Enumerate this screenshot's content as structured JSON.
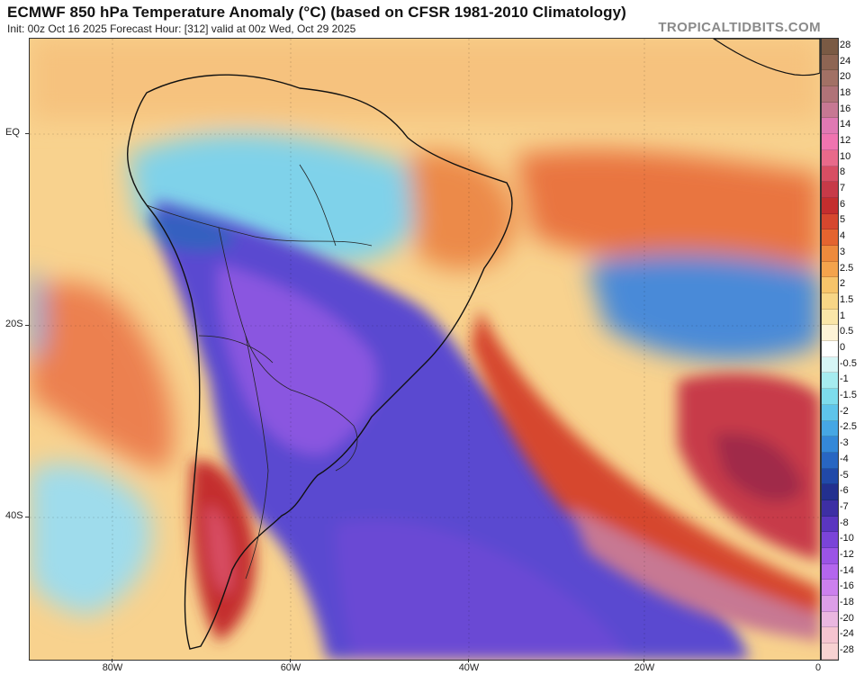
{
  "header": {
    "title": "ECMWF 850 hPa Temperature Anomaly (°C) (based on CFSR 1981-2010 Climatology)",
    "subtitle": "Init: 00z Oct 16 2025   Forecast Hour: [312]   valid at 00z Wed, Oct 29 2025",
    "watermark": "TROPICALTIDBITS.COM"
  },
  "axes": {
    "lat_labels": [
      "EQ",
      "20S",
      "40S"
    ],
    "lon_labels": [
      "80W",
      "60W",
      "40W",
      "20W",
      "0"
    ]
  },
  "colorbar": {
    "labels": [
      "28",
      "24",
      "20",
      "18",
      "16",
      "14",
      "12",
      "10",
      "8",
      "7",
      "6",
      "5",
      "4",
      "3",
      "2.5",
      "2",
      "1.5",
      "1",
      "0.5",
      "0",
      "-0.5",
      "-1",
      "-1.5",
      "-2",
      "-2.5",
      "-3",
      "-4",
      "-5",
      "-6",
      "-7",
      "-8",
      "-10",
      "-12",
      "-14",
      "-16",
      "-18",
      "-20",
      "-24",
      "-28"
    ],
    "colors": [
      "#7a5a44",
      "#8e6553",
      "#a27165",
      "#b07378",
      "#c77893",
      "#e079b3",
      "#f074b0",
      "#e86a8a",
      "#d84e63",
      "#c73a48",
      "#c42e2e",
      "#d6472e",
      "#e4642f",
      "#ee8a3c",
      "#f4a34c",
      "#f7c46a",
      "#f8d686",
      "#fae6a8",
      "#fdf3d6",
      "#ffffff",
      "#d6f5f5",
      "#a6ecf0",
      "#7ddcec",
      "#5ec4ea",
      "#46a7e4",
      "#3488d8",
      "#2866c2",
      "#2149a8",
      "#23308f",
      "#3d2fa4",
      "#5a36c0",
      "#7a44d8",
      "#9b54e6",
      "#b466ee",
      "#cc80ee",
      "#dc9ee8",
      "#eab7e0",
      "#f5c4d0",
      "#f8d2d2"
    ]
  },
  "map": {
    "land_color": "#f7c98f"
  }
}
